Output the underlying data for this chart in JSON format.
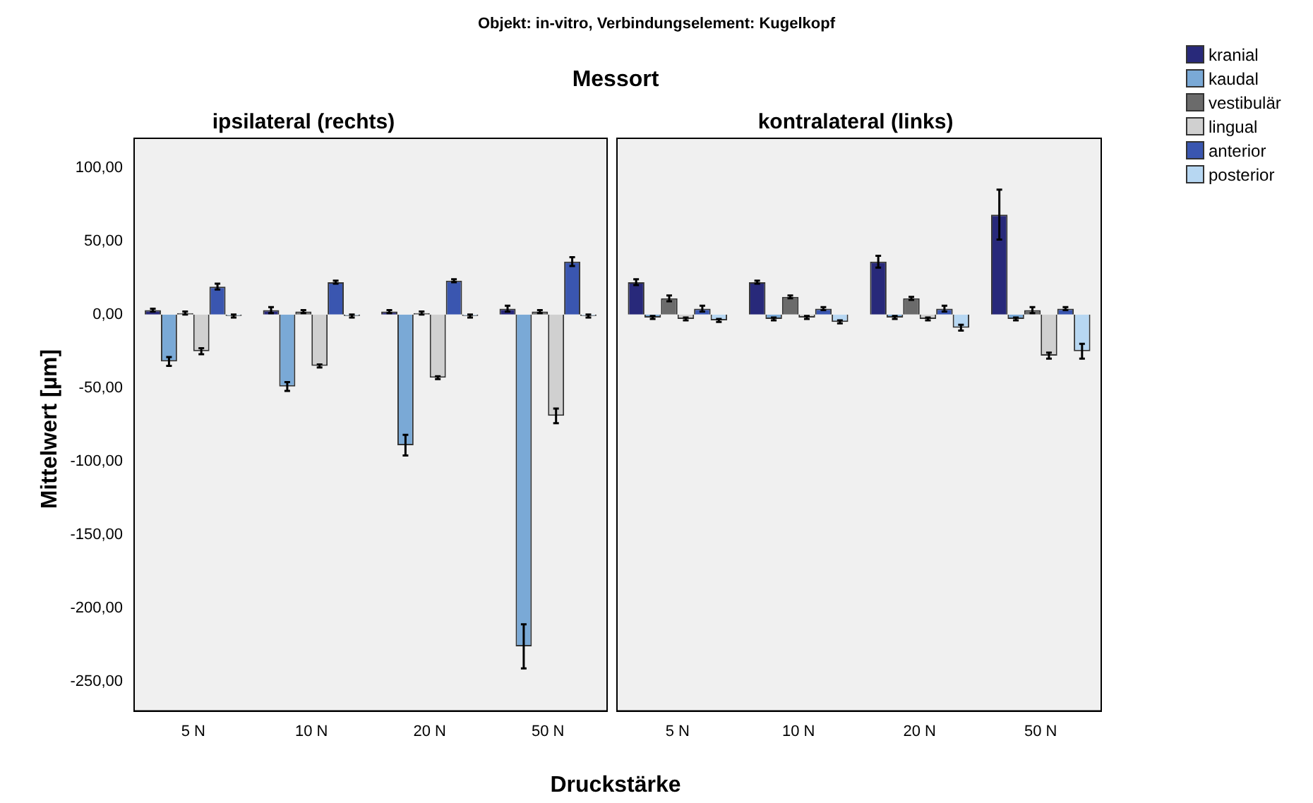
{
  "chart_data": [
    {
      "type": "bar",
      "title": "ipsilateral (rechts)",
      "annotations": [
        "Objekt: in-vitro, Verbindungselement: Kugelkopf",
        "Messort"
      ],
      "xlabel": "Druckstärke",
      "ylabel": "Mittelwert [µm]",
      "categories": [
        "5 N",
        "10 N",
        "20 N",
        "50 N"
      ],
      "series": [
        {
          "name": "kranial",
          "color": "#28297a",
          "values": [
            3,
            3,
            2,
            4
          ],
          "errors": [
            1,
            2,
            1,
            2
          ]
        },
        {
          "name": "kaudal",
          "color": "#7aa9d6",
          "values": [
            -32,
            -49,
            -89,
            -226
          ],
          "errors": [
            3,
            3,
            7,
            15
          ]
        },
        {
          "name": "vestibulär",
          "color": "#6b6b6b",
          "values": [
            1,
            2,
            1,
            2
          ],
          "errors": [
            1,
            1,
            1,
            1
          ]
        },
        {
          "name": "lingual",
          "color": "#d0d0d0",
          "values": [
            -25,
            -35,
            -43,
            -69
          ],
          "errors": [
            2,
            1,
            1,
            5
          ]
        },
        {
          "name": "anterior",
          "color": "#3a56b0",
          "values": [
            19,
            22,
            23,
            36
          ],
          "errors": [
            2,
            1,
            1,
            3
          ]
        },
        {
          "name": "posterior",
          "color": "#b7d7f2",
          "values": [
            -1,
            -1,
            -1,
            -1
          ],
          "errors": [
            1,
            1,
            1,
            1
          ]
        }
      ],
      "ylim": [
        -270,
        120
      ],
      "yticks": [
        {
          "value": -250,
          "label": "-250,00"
        },
        {
          "value": -200,
          "label": "-200,00"
        },
        {
          "value": -150,
          "label": "-150,00"
        },
        {
          "value": -100,
          "label": "-100,00"
        },
        {
          "value": -50,
          "label": "-50,00"
        },
        {
          "value": 0,
          "label": "0,00"
        },
        {
          "value": 50,
          "label": "50,00"
        },
        {
          "value": 100,
          "label": "100,00"
        }
      ],
      "legend": "top right"
    },
    {
      "type": "bar",
      "title": "kontralateral (links)",
      "categories": [
        "5 N",
        "10 N",
        "20 N",
        "50 N"
      ],
      "series": [
        {
          "color": "#28297a",
          "values": [
            22,
            22,
            36,
            68
          ],
          "errors": [
            2,
            1,
            4,
            17
          ]
        },
        {
          "color": "#7aa9d6",
          "values": [
            -2,
            -3,
            -2,
            -3
          ],
          "errors": [
            1,
            1,
            1,
            1
          ]
        },
        {
          "color": "#6b6b6b",
          "values": [
            11,
            12,
            11,
            3
          ],
          "errors": [
            2,
            1,
            1,
            2
          ]
        },
        {
          "color": "#d0d0d0",
          "values": [
            -3,
            -2,
            -3,
            -28
          ],
          "errors": [
            1,
            1,
            1,
            2
          ]
        },
        {
          "color": "#3a56b0",
          "values": [
            4,
            4,
            4,
            4
          ],
          "errors": [
            2,
            1,
            2,
            1
          ]
        },
        {
          "color": "#b7d7f2",
          "values": [
            -4,
            -5,
            -9,
            -25
          ],
          "errors": [
            1,
            1,
            2,
            5
          ]
        }
      ],
      "ylim": [
        -270,
        120
      ],
      "tick_labels": "x"
    }
  ]
}
